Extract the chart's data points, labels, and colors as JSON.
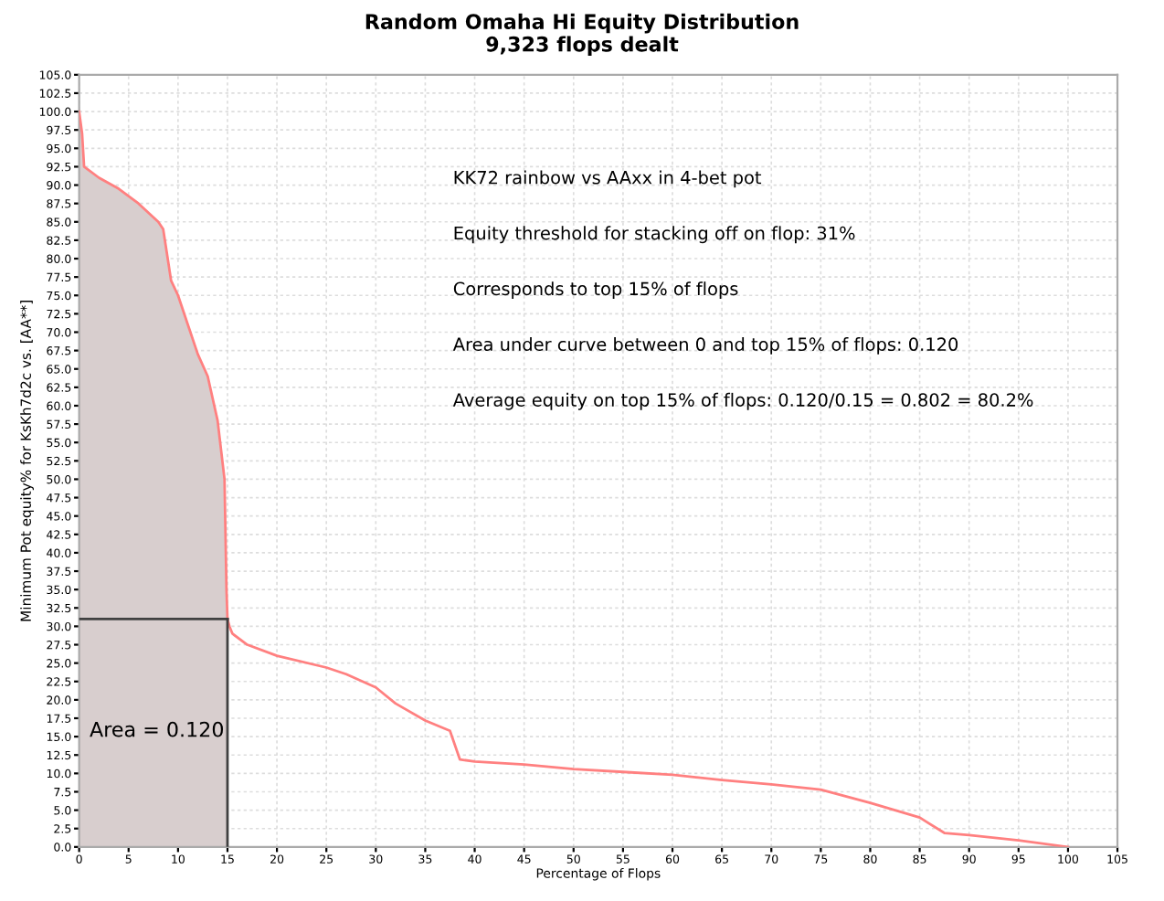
{
  "chart_data": {
    "type": "line",
    "title": "Random Omaha Hi Equity Distribution",
    "subtitle": "9,323 flops dealt",
    "xlabel": "Percentage of Flops",
    "ylabel": "Minimum Pot equity% for KsKh7d2c vs. [AA**]",
    "series": [
      {
        "type": "area",
        "color": "#ff8080",
        "x": [
          0,
          0.3,
          0.5,
          2,
          4,
          6,
          8,
          8.5,
          9.3,
          10,
          11,
          12,
          13,
          14,
          14.7,
          14.9,
          15
        ],
        "values": [
          100,
          97,
          92.5,
          91,
          89.5,
          87.5,
          85,
          84,
          77,
          75,
          71,
          67,
          64,
          58,
          50,
          35,
          31
        ]
      },
      {
        "color": "#ff8080",
        "x": [
          15,
          15.2,
          15.5,
          17,
          20,
          25,
          27,
          30,
          32,
          35,
          37.5,
          38.5,
          40,
          45,
          50,
          55,
          60,
          65,
          70,
          75,
          80,
          85,
          87.5,
          90,
          95,
          100
        ],
        "values": [
          31,
          30,
          29,
          27.5,
          26,
          24.4,
          23.5,
          21.7,
          19.5,
          17.2,
          15.8,
          11.9,
          11.6,
          11.2,
          10.6,
          10.2,
          9.8,
          9.1,
          8.5,
          7.8,
          6,
          4,
          1.9,
          1.6,
          0.9,
          0
        ]
      }
    ],
    "ref_lines": [
      {
        "axis": "y",
        "value": 31,
        "color": "#404040"
      },
      {
        "axis": "x",
        "value": 15,
        "color": "#404040"
      }
    ],
    "annotations": [
      "KK72 rainbow vs AAxx in 4-bet pot",
      "Equity threshold for stacking off on flop: 31%",
      "Corresponds to top 15% of flops",
      "Area under curve between 0 and top 15% of flops: 0.120",
      "Average equity on top 15% of flops: 0.120/0.15 = 0.802 = 80.2%",
      "Area = 0.120"
    ],
    "xlim": [
      0,
      105
    ],
    "ylim": [
      0,
      105
    ],
    "xticks": [
      0,
      5,
      10,
      15,
      20,
      25,
      30,
      35,
      40,
      45,
      50,
      55,
      60,
      65,
      70,
      75,
      80,
      85,
      90,
      95,
      100,
      105
    ],
    "yticks": [
      {
        "value": 0,
        "label": "0.0"
      },
      {
        "value": 2.5,
        "label": "2.5"
      },
      {
        "value": 5,
        "label": "5.0"
      },
      {
        "value": 7.5,
        "label": "7.5"
      },
      {
        "value": 10,
        "label": "10.0"
      },
      {
        "value": 12.5,
        "label": "12.5"
      },
      {
        "value": 15,
        "label": "15.0"
      },
      {
        "value": 17.5,
        "label": "17.5"
      },
      {
        "value": 20,
        "label": "20.0"
      },
      {
        "value": 22.5,
        "label": "22.5"
      },
      {
        "value": 25,
        "label": "25.0"
      },
      {
        "value": 27.5,
        "label": "27.5"
      },
      {
        "value": 30,
        "label": "30.0"
      },
      {
        "value": 32.5,
        "label": "32.5"
      },
      {
        "value": 35,
        "label": "35.0"
      },
      {
        "value": 37.5,
        "label": "37.5"
      },
      {
        "value": 40,
        "label": "40.0"
      },
      {
        "value": 42.5,
        "label": "42.5"
      },
      {
        "value": 45,
        "label": "45.0"
      },
      {
        "value": 47.5,
        "label": "47.5"
      },
      {
        "value": 50,
        "label": "50.0"
      },
      {
        "value": 52.5,
        "label": "52.5"
      },
      {
        "value": 55,
        "label": "55.0"
      },
      {
        "value": 57.5,
        "label": "57.5"
      },
      {
        "value": 60,
        "label": "60.0"
      },
      {
        "value": 62.5,
        "label": "62.5"
      },
      {
        "value": 65,
        "label": "65.0"
      },
      {
        "value": 67.5,
        "label": "67.5"
      },
      {
        "value": 70,
        "label": "70.0"
      },
      {
        "value": 72.5,
        "label": "72.5"
      },
      {
        "value": 75,
        "label": "75.0"
      },
      {
        "value": 77.5,
        "label": "77.5"
      },
      {
        "value": 80,
        "label": "80.0"
      },
      {
        "value": 82.5,
        "label": "82.5"
      },
      {
        "value": 85,
        "label": "85.0"
      },
      {
        "value": 87.5,
        "label": "87.5"
      },
      {
        "value": 90,
        "label": "90.0"
      },
      {
        "value": 92.5,
        "label": "92.5"
      },
      {
        "value": 95,
        "label": "95.0"
      },
      {
        "value": 97.5,
        "label": "97.5"
      },
      {
        "value": 100,
        "label": "100.0"
      },
      {
        "value": 102.5,
        "label": "102.5"
      },
      {
        "value": 105,
        "label": "105.0"
      }
    ],
    "grid": true,
    "legend": false,
    "marker": "none",
    "line_style": "solid"
  }
}
